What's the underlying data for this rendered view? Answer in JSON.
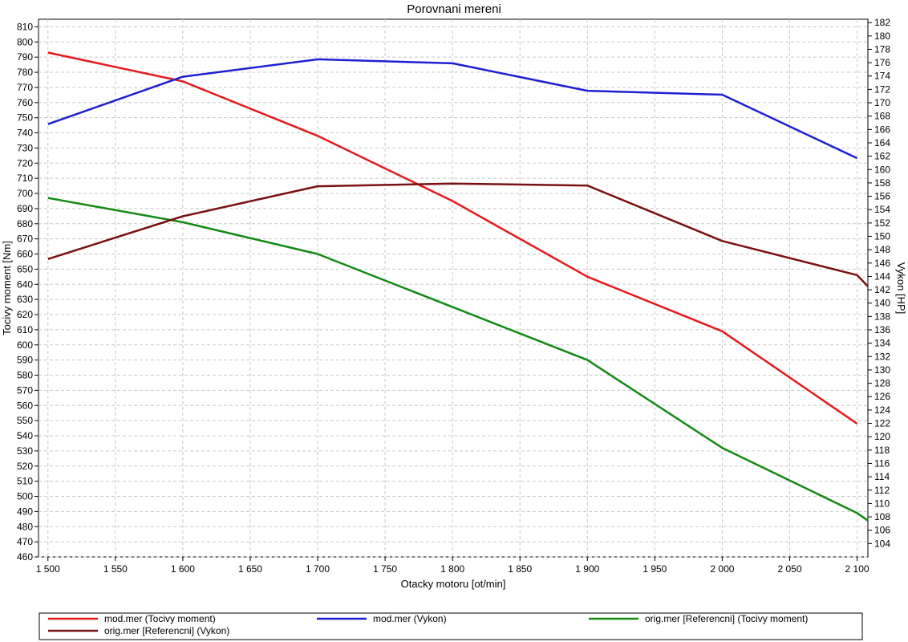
{
  "chart_data": {
    "type": "line",
    "title": "Porovnani mereni",
    "xlabel": "Otacky motoru [ot/min]",
    "ylabel_left": "Tocivy moment [Nm]",
    "ylabel_right": "Vykon [HP]",
    "xlim": [
      1493,
      2108
    ],
    "ylim_left": [
      460,
      815
    ],
    "ylim_right": [
      102,
      182.5
    ],
    "grid": true,
    "legend_position": "bottom",
    "x_ticks": [
      1500,
      1550,
      1600,
      1650,
      1700,
      1750,
      1800,
      1850,
      1900,
      1950,
      2000,
      2050,
      2100
    ],
    "x_tick_labels": [
      "1 500",
      "1 550",
      "1 600",
      "1 650",
      "1 700",
      "1 750",
      "1 800",
      "1 850",
      "1 900",
      "1 950",
      "2 000",
      "2 050",
      "2 100"
    ],
    "y_left_ticks": [
      460,
      470,
      480,
      490,
      500,
      510,
      520,
      530,
      540,
      550,
      560,
      570,
      580,
      590,
      600,
      610,
      620,
      630,
      640,
      650,
      660,
      670,
      680,
      690,
      700,
      710,
      720,
      730,
      740,
      750,
      760,
      770,
      780,
      790,
      800,
      810
    ],
    "y_right_ticks": [
      104,
      106,
      108,
      110,
      112,
      114,
      116,
      118,
      120,
      122,
      124,
      126,
      128,
      130,
      132,
      134,
      136,
      138,
      140,
      142,
      144,
      146,
      148,
      150,
      152,
      154,
      156,
      158,
      160,
      162,
      164,
      166,
      168,
      170,
      172,
      174,
      176,
      178,
      180,
      182
    ],
    "series": [
      {
        "name": "mod.mer  (Tocivy moment)",
        "axis": "left",
        "color": "#e41a1c",
        "x": [
          1500,
          1600,
          1700,
          1800,
          1900,
          2000,
          2100
        ],
        "y": [
          793,
          774,
          738,
          695,
          645,
          609,
          548
        ]
      },
      {
        "name": "mod.mer  (Vykon)",
        "axis": "right",
        "color": "#1f1fd2",
        "x": [
          1500,
          1600,
          1700,
          1800,
          1900,
          2000,
          2100
        ],
        "y": [
          166.8,
          173.9,
          176.5,
          175.9,
          171.8,
          171.2,
          161.7
        ]
      },
      {
        "name": "orig.mer [Referencni]  (Tocivy moment)",
        "axis": "left",
        "color": "#138a13",
        "x": [
          1500,
          1600,
          1700,
          1800,
          1900,
          2000,
          2100,
          2108
        ],
        "y": [
          697,
          681,
          660,
          625,
          590,
          532,
          489,
          484
        ]
      },
      {
        "name": "orig.mer [Referencni]  (Vykon)",
        "axis": "right",
        "color": "#7a1010",
        "x": [
          1500,
          1600,
          1700,
          1800,
          1900,
          2000,
          2100,
          2108
        ],
        "y": [
          146.6,
          153.0,
          157.5,
          157.9,
          157.6,
          149.3,
          144.2,
          142.5
        ]
      }
    ]
  }
}
